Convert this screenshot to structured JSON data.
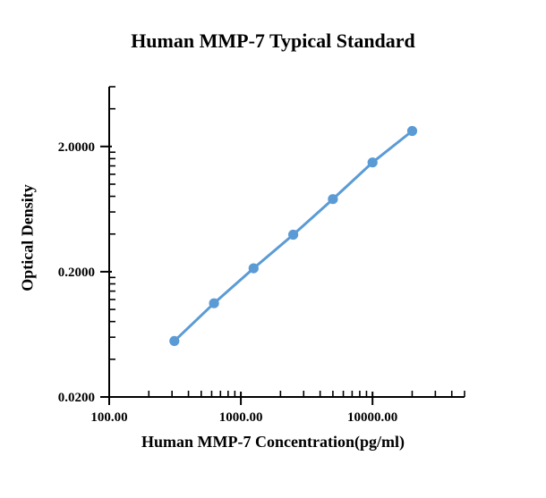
{
  "chart_data": {
    "type": "line",
    "title": "Human MMP-7 Typical Standard",
    "xlabel": "Human MMP-7 Concentration(pg/ml)",
    "ylabel": "Optical Density",
    "x_scale": "log",
    "y_scale": "log",
    "xlim": [
      100,
      50000
    ],
    "ylim": [
      0.02,
      6
    ],
    "x_ticks": [
      100,
      1000,
      10000
    ],
    "x_tick_labels": [
      "100.00",
      "1000.00",
      "10000.00"
    ],
    "y_ticks": [
      0.02,
      0.2,
      2.0
    ],
    "y_tick_labels": [
      "0.0200",
      "0.2000",
      "2.0000"
    ],
    "grid": false,
    "legend": false,
    "axis_color": "#000000",
    "series": [
      {
        "x": [
          312.5,
          625,
          1250,
          2500,
          5000,
          10000,
          20000
        ],
        "y": [
          0.056,
          0.112,
          0.213,
          0.395,
          0.76,
          1.49,
          2.66
        ],
        "color": "#5B9BD5",
        "marker": "circle"
      }
    ]
  }
}
